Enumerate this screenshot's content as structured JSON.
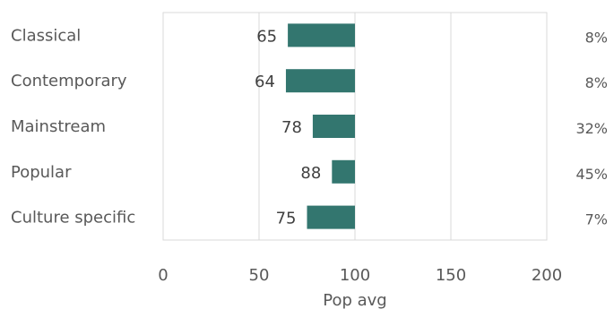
{
  "chart_data": {
    "type": "bar",
    "orientation": "horizontal",
    "categories": [
      "Classical",
      "Contemporary",
      "Mainstream",
      "Popular",
      "Culture specific"
    ],
    "values": [
      65,
      64,
      78,
      88,
      75
    ],
    "data_labels": [
      "65",
      "64",
      "78",
      "88",
      "75"
    ],
    "shares": [
      "8%",
      "8%",
      "32%",
      "45%",
      "7%"
    ],
    "baseline": 100,
    "xlim": [
      0,
      200
    ],
    "xticks": [
      0,
      50,
      100,
      150,
      200
    ],
    "xtick_labels": [
      "0",
      "50",
      "100",
      "150",
      "200"
    ],
    "xlabel": "Pop avg",
    "grid": true,
    "bar_color": "#33766F",
    "grid_color": "#D9D9D9",
    "text_color": "#595959"
  }
}
